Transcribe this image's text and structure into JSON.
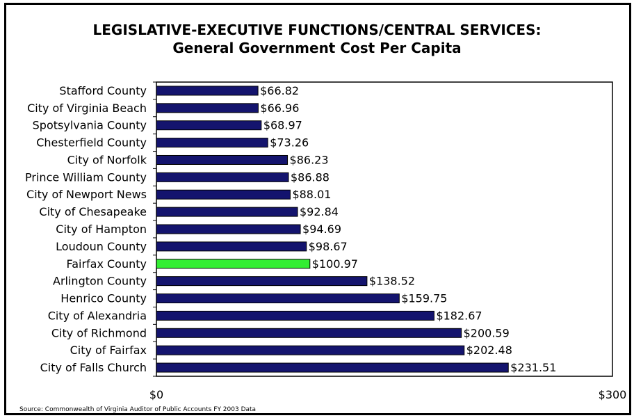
{
  "chart_data": {
    "type": "bar",
    "orientation": "horizontal",
    "title": "LEGISLATIVE-EXECUTIVE FUNCTIONS/CENTRAL SERVICES:",
    "subtitle": "General Government Cost Per Capita",
    "categories": [
      "Stafford County",
      "City of Virginia Beach",
      "Spotsylvania County",
      "Chesterfield County",
      "City of Norfolk",
      "Prince William County",
      "City of Newport News",
      "City of Chesapeake",
      "City of Hampton",
      "Loudoun County",
      "Fairfax County",
      "Arlington County",
      "Henrico County",
      "City of Alexandria",
      "City of Richmond",
      "City of Fairfax",
      "City of Falls Church"
    ],
    "values": [
      66.82,
      66.96,
      68.97,
      73.26,
      86.23,
      86.88,
      88.01,
      92.84,
      94.69,
      98.67,
      100.97,
      138.52,
      159.75,
      182.67,
      200.59,
      202.48,
      231.51
    ],
    "value_labels": [
      "$66.82",
      "$66.96",
      "$68.97",
      "$73.26",
      "$86.23",
      "$86.88",
      "$88.01",
      "$92.84",
      "$94.69",
      "$98.67",
      "$100.97",
      "$138.52",
      "$159.75",
      "$182.67",
      "$200.59",
      "$202.48",
      "$231.51"
    ],
    "highlight_index": 10,
    "xlim": [
      0,
      300
    ],
    "x_tick_labels": [
      "$0",
      "$300"
    ],
    "colors": {
      "bar": "#14146e",
      "highlight": "#33ee33",
      "outline": "#000000"
    },
    "grid": false,
    "legend": "none"
  },
  "footer": {
    "source": "Source: Commonwealth of Virginia Auditor of Public Accounts FY 2003 Data"
  }
}
